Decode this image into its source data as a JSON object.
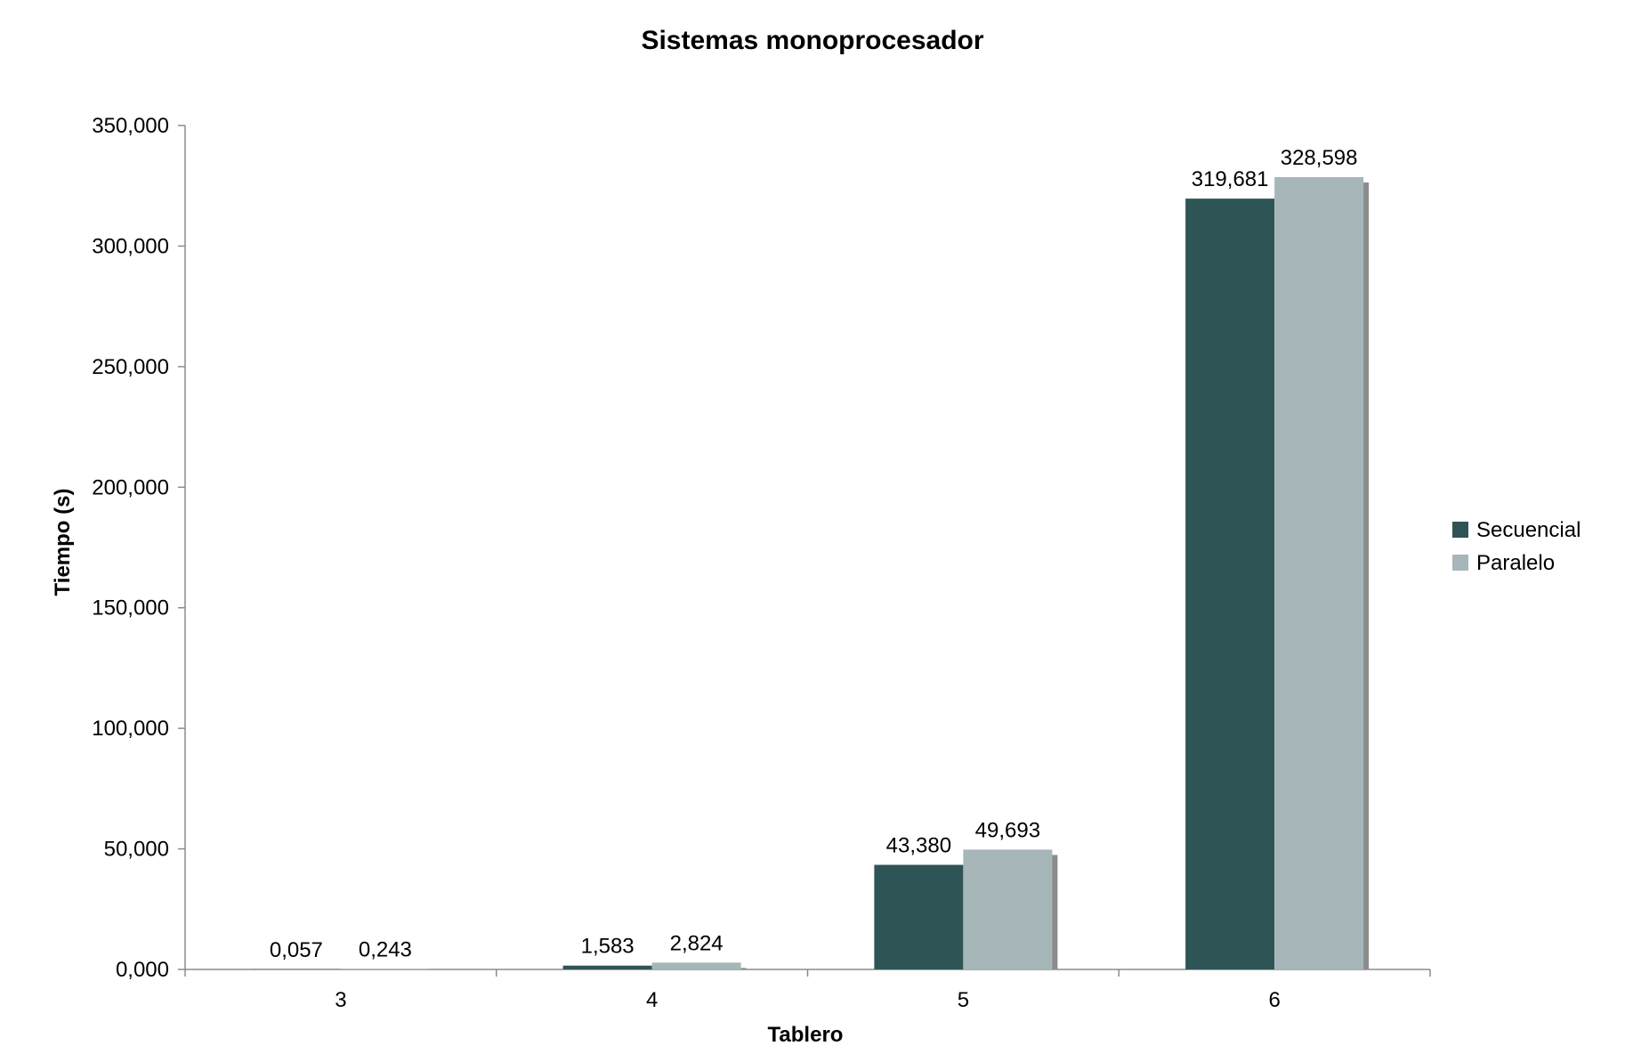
{
  "chart_data": {
    "type": "bar",
    "title": "Sistemas monoprocesador",
    "xlabel": "Tablero",
    "ylabel": "Tiempo (s)",
    "categories": [
      "3",
      "4",
      "5",
      "6"
    ],
    "series": [
      {
        "name": "Secuencial",
        "values": [
          0.057,
          1.583,
          43.38,
          319.681
        ],
        "labels": [
          "0,057",
          "1,583",
          "43,380",
          "319,681"
        ]
      },
      {
        "name": "Paralelo",
        "values": [
          0.243,
          2.824,
          49.693,
          328.598
        ],
        "labels": [
          "0,243",
          "2,824",
          "49,693",
          "328,598"
        ]
      }
    ],
    "ylim": [
      0,
      350
    ],
    "yticks": [
      0,
      50,
      100,
      150,
      200,
      250,
      300,
      350
    ],
    "ytick_labels": [
      "0,000",
      "50,000",
      "100,000",
      "150,000",
      "200,000",
      "250,000",
      "300,000",
      "350,000"
    ],
    "grid": false,
    "legend_position": "right",
    "colors": {
      "Secuencial": "#2f5455",
      "Paralelo": "#a6b6b9",
      "shadow": "#8c8c8c",
      "axis": "#8c8c8c"
    }
  }
}
